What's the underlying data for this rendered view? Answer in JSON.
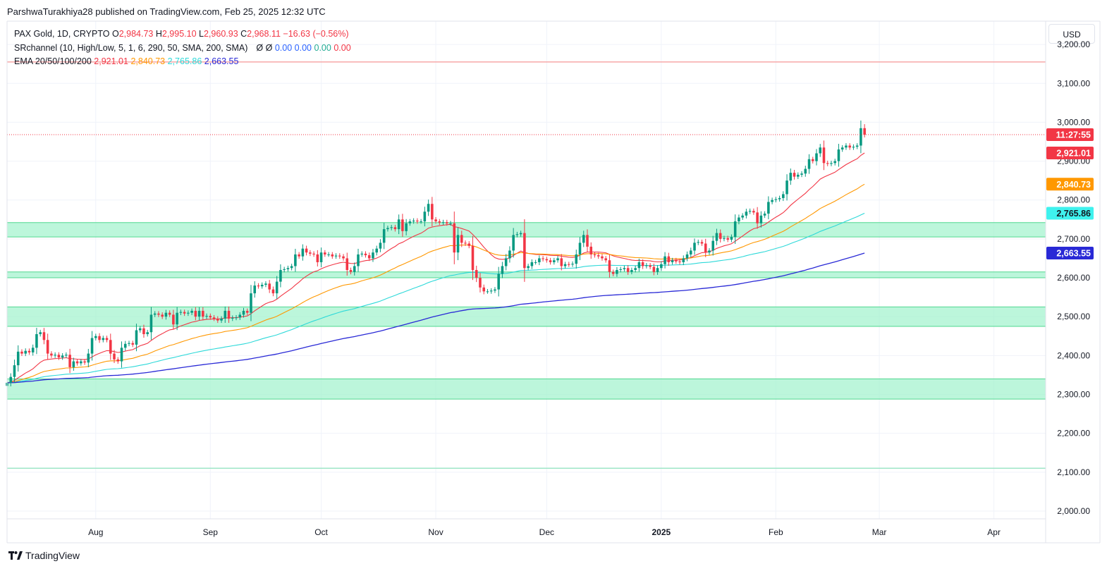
{
  "publisher": "ParshwaTurakhiya28 published on TradingView.com, Feb 25, 2025 12:32 UTC",
  "legend": {
    "symbol": "PAX Gold, 1D, CRYPTO",
    "ohlc": {
      "o_label": "O",
      "o": "2,984.73",
      "h_label": "H",
      "h": "2,995.10",
      "l_label": "L",
      "l": "2,960.93",
      "c_label": "C",
      "c": "2,968.11",
      "change": "−16.63 (−0.56%)"
    },
    "srchannel": {
      "label": "SRchannel (10, High/Low, 5, 1, 6, 290, 50, SMA, 200, SMA)",
      "v1": "Ø",
      "v2": "Ø",
      "v3": "0.00",
      "v4": "0.00",
      "v5": "0.00",
      "v6": "0.00"
    },
    "ema": {
      "label": "EMA 20/50/100/200",
      "v20": "2,921.01",
      "v50": "2,840.73",
      "v100": "2,765.86",
      "v200": "2,663.55"
    }
  },
  "currency_button": "USD",
  "price_tags": {
    "countdown": "11:27:55",
    "ema20": "2,921.01",
    "ema50": "2,840.73",
    "ema100": "2,765.86",
    "ema200": "2,663.55"
  },
  "footer_logo_text": "TradingView",
  "colors": {
    "up": "#089981",
    "down": "#f23645",
    "ema20": "#f23645",
    "ema50": "#ff9800",
    "ema100": "#2dd9d9",
    "ema200": "#2929d6",
    "zone": "#9ff2cc",
    "zone_edge": "#50d890",
    "resistance": "#f7a8a8",
    "support": "#9ee6c7",
    "grid": "#f0f3fa",
    "axis_text": "#131722"
  },
  "chart_data": {
    "type": "candlestick",
    "ylim": [
      1980,
      3260
    ],
    "xlim": [
      "2024-07-08",
      "2025-04-15"
    ],
    "y_ticks": [
      "3,200.00",
      "3,100.00",
      "3,000.00",
      "2,900.00",
      "2,800.00",
      "2,700.00",
      "2,600.00",
      "2,500.00",
      "2,400.00",
      "2,300.00",
      "2,200.00",
      "2,100.00",
      "2,000.00"
    ],
    "y_tick_values": [
      3200,
      3100,
      3000,
      2900,
      2800,
      2700,
      2600,
      2500,
      2400,
      2300,
      2200,
      2100,
      2000
    ],
    "x_ticks": [
      "Aug",
      "Sep",
      "Oct",
      "Nov",
      "Dec",
      "2025",
      "Feb",
      "Mar",
      "Apr"
    ],
    "x_tick_dates": [
      "2024-08-01",
      "2024-09-01",
      "2024-10-01",
      "2024-11-01",
      "2024-12-01",
      "2025-01-01",
      "2025-02-01",
      "2025-03-01",
      "2025-04-01"
    ],
    "last_close": 2968.11,
    "resistance_line": 3155,
    "support_line": 2110,
    "sr_zones": [
      [
        2705,
        2742
      ],
      [
        2600,
        2615
      ],
      [
        2475,
        2525
      ],
      [
        2288,
        2340
      ]
    ],
    "closes": [
      [
        "2024-07-08",
        2330
      ],
      [
        "2024-07-09",
        2345
      ],
      [
        "2024-07-10",
        2375
      ],
      [
        "2024-07-11",
        2410
      ],
      [
        "2024-07-12",
        2405
      ],
      [
        "2024-07-13",
        2412
      ],
      [
        "2024-07-14",
        2408
      ],
      [
        "2024-07-15",
        2420
      ],
      [
        "2024-07-16",
        2455
      ],
      [
        "2024-07-17",
        2460
      ],
      [
        "2024-07-18",
        2440
      ],
      [
        "2024-07-19",
        2405
      ],
      [
        "2024-07-20",
        2400
      ],
      [
        "2024-07-21",
        2402
      ],
      [
        "2024-07-22",
        2395
      ],
      [
        "2024-07-23",
        2400
      ],
      [
        "2024-07-24",
        2402
      ],
      [
        "2024-07-25",
        2370
      ],
      [
        "2024-07-26",
        2385
      ],
      [
        "2024-07-27",
        2380
      ],
      [
        "2024-07-28",
        2385
      ],
      [
        "2024-07-29",
        2382
      ],
      [
        "2024-07-30",
        2405
      ],
      [
        "2024-07-31",
        2445
      ],
      [
        "2024-08-01",
        2450
      ],
      [
        "2024-08-02",
        2440
      ],
      [
        "2024-08-03",
        2445
      ],
      [
        "2024-08-04",
        2440
      ],
      [
        "2024-08-05",
        2405
      ],
      [
        "2024-08-06",
        2390
      ],
      [
        "2024-08-07",
        2385
      ],
      [
        "2024-08-08",
        2420
      ],
      [
        "2024-08-09",
        2430
      ],
      [
        "2024-08-10",
        2432
      ],
      [
        "2024-08-11",
        2428
      ],
      [
        "2024-08-12",
        2465
      ],
      [
        "2024-08-13",
        2470
      ],
      [
        "2024-08-14",
        2455
      ],
      [
        "2024-08-15",
        2460
      ],
      [
        "2024-08-16",
        2505
      ],
      [
        "2024-08-17",
        2508
      ],
      [
        "2024-08-18",
        2505
      ],
      [
        "2024-08-19",
        2500
      ],
      [
        "2024-08-20",
        2510
      ],
      [
        "2024-08-21",
        2505
      ],
      [
        "2024-08-22",
        2480
      ],
      [
        "2024-08-23",
        2510
      ],
      [
        "2024-08-24",
        2512
      ],
      [
        "2024-08-25",
        2508
      ],
      [
        "2024-08-26",
        2510
      ],
      [
        "2024-08-27",
        2515
      ],
      [
        "2024-08-28",
        2500
      ],
      [
        "2024-08-29",
        2515
      ],
      [
        "2024-08-30",
        2500
      ],
      [
        "2024-08-31",
        2502
      ],
      [
        "2024-09-01",
        2498
      ],
      [
        "2024-09-02",
        2495
      ],
      [
        "2024-09-03",
        2490
      ],
      [
        "2024-09-04",
        2495
      ],
      [
        "2024-09-05",
        2515
      ],
      [
        "2024-09-06",
        2495
      ],
      [
        "2024-09-07",
        2497
      ],
      [
        "2024-09-08",
        2498
      ],
      [
        "2024-09-09",
        2505
      ],
      [
        "2024-09-10",
        2515
      ],
      [
        "2024-09-11",
        2510
      ],
      [
        "2024-09-12",
        2560
      ],
      [
        "2024-09-13",
        2580
      ],
      [
        "2024-09-14",
        2578
      ],
      [
        "2024-09-15",
        2582
      ],
      [
        "2024-09-16",
        2585
      ],
      [
        "2024-09-17",
        2570
      ],
      [
        "2024-09-18",
        2560
      ],
      [
        "2024-09-19",
        2590
      ],
      [
        "2024-09-20",
        2620
      ],
      [
        "2024-09-21",
        2622
      ],
      [
        "2024-09-22",
        2625
      ],
      [
        "2024-09-23",
        2630
      ],
      [
        "2024-09-24",
        2660
      ],
      [
        "2024-09-25",
        2655
      ],
      [
        "2024-09-26",
        2675
      ],
      [
        "2024-09-27",
        2665
      ],
      [
        "2024-09-28",
        2662
      ],
      [
        "2024-09-29",
        2660
      ],
      [
        "2024-09-30",
        2640
      ],
      [
        "2024-10-01",
        2665
      ],
      [
        "2024-10-02",
        2660
      ],
      [
        "2024-10-03",
        2660
      ],
      [
        "2024-10-04",
        2655
      ],
      [
        "2024-10-05",
        2657
      ],
      [
        "2024-10-06",
        2655
      ],
      [
        "2024-10-07",
        2650
      ],
      [
        "2024-10-08",
        2620
      ],
      [
        "2024-10-09",
        2615
      ],
      [
        "2024-10-10",
        2630
      ],
      [
        "2024-10-11",
        2660
      ],
      [
        "2024-10-12",
        2662
      ],
      [
        "2024-10-13",
        2658
      ],
      [
        "2024-10-14",
        2650
      ],
      [
        "2024-10-15",
        2665
      ],
      [
        "2024-10-16",
        2675
      ],
      [
        "2024-10-17",
        2690
      ],
      [
        "2024-10-18",
        2725
      ],
      [
        "2024-10-19",
        2728
      ],
      [
        "2024-10-20",
        2730
      ],
      [
        "2024-10-21",
        2725
      ],
      [
        "2024-10-22",
        2750
      ],
      [
        "2024-10-23",
        2720
      ],
      [
        "2024-10-24",
        2740
      ],
      [
        "2024-10-25",
        2745
      ],
      [
        "2024-10-26",
        2747
      ],
      [
        "2024-10-27",
        2745
      ],
      [
        "2024-10-28",
        2745
      ],
      [
        "2024-10-29",
        2770
      ],
      [
        "2024-10-30",
        2790
      ],
      [
        "2024-10-31",
        2750
      ],
      [
        "2024-11-01",
        2745
      ],
      [
        "2024-11-02",
        2742
      ],
      [
        "2024-11-03",
        2743
      ],
      [
        "2024-11-04",
        2740
      ],
      [
        "2024-11-05",
        2740
      ],
      [
        "2024-11-06",
        2665
      ],
      [
        "2024-11-07",
        2710
      ],
      [
        "2024-11-08",
        2690
      ],
      [
        "2024-11-09",
        2688
      ],
      [
        "2024-11-10",
        2682
      ],
      [
        "2024-11-11",
        2620
      ],
      [
        "2024-11-12",
        2600
      ],
      [
        "2024-11-13",
        2575
      ],
      [
        "2024-11-14",
        2565
      ],
      [
        "2024-11-15",
        2565
      ],
      [
        "2024-11-16",
        2567
      ],
      [
        "2024-11-17",
        2570
      ],
      [
        "2024-11-18",
        2610
      ],
      [
        "2024-11-19",
        2630
      ],
      [
        "2024-11-20",
        2650
      ],
      [
        "2024-11-21",
        2670
      ],
      [
        "2024-11-22",
        2710
      ],
      [
        "2024-11-23",
        2712
      ],
      [
        "2024-11-24",
        2715
      ],
      [
        "2024-11-25",
        2625
      ],
      [
        "2024-11-26",
        2630
      ],
      [
        "2024-11-27",
        2640
      ],
      [
        "2024-11-28",
        2640
      ],
      [
        "2024-11-29",
        2650
      ],
      [
        "2024-11-30",
        2648
      ],
      [
        "2024-12-01",
        2645
      ],
      [
        "2024-12-02",
        2640
      ],
      [
        "2024-12-03",
        2645
      ],
      [
        "2024-12-04",
        2650
      ],
      [
        "2024-12-05",
        2630
      ],
      [
        "2024-12-06",
        2635
      ],
      [
        "2024-12-07",
        2634
      ],
      [
        "2024-12-08",
        2636
      ],
      [
        "2024-12-09",
        2660
      ],
      [
        "2024-12-10",
        2690
      ],
      [
        "2024-12-11",
        2710
      ],
      [
        "2024-12-12",
        2680
      ],
      [
        "2024-12-13",
        2660
      ],
      [
        "2024-12-14",
        2658
      ],
      [
        "2024-12-15",
        2655
      ],
      [
        "2024-12-16",
        2650
      ],
      [
        "2024-12-17",
        2645
      ],
      [
        "2024-12-18",
        2615
      ],
      [
        "2024-12-19",
        2610
      ],
      [
        "2024-12-20",
        2620
      ],
      [
        "2024-12-21",
        2622
      ],
      [
        "2024-12-22",
        2625
      ],
      [
        "2024-12-23",
        2615
      ],
      [
        "2024-12-24",
        2620
      ],
      [
        "2024-12-25",
        2625
      ],
      [
        "2024-12-26",
        2640
      ],
      [
        "2024-12-27",
        2630
      ],
      [
        "2024-12-28",
        2632
      ],
      [
        "2024-12-29",
        2628
      ],
      [
        "2024-12-30",
        2615
      ],
      [
        "2024-12-31",
        2625
      ],
      [
        "2025-01-01",
        2635
      ],
      [
        "2025-01-02",
        2655
      ],
      [
        "2025-01-03",
        2640
      ],
      [
        "2025-01-04",
        2645
      ],
      [
        "2025-01-05",
        2642
      ],
      [
        "2025-01-06",
        2640
      ],
      [
        "2025-01-07",
        2650
      ],
      [
        "2025-01-08",
        2660
      ],
      [
        "2025-01-09",
        2670
      ],
      [
        "2025-01-10",
        2690
      ],
      [
        "2025-01-11",
        2692
      ],
      [
        "2025-01-12",
        2688
      ],
      [
        "2025-01-13",
        2665
      ],
      [
        "2025-01-14",
        2670
      ],
      [
        "2025-01-15",
        2695
      ],
      [
        "2025-01-16",
        2715
      ],
      [
        "2025-01-17",
        2700
      ],
      [
        "2025-01-18",
        2702
      ],
      [
        "2025-01-19",
        2698
      ],
      [
        "2025-01-20",
        2705
      ],
      [
        "2025-01-21",
        2745
      ],
      [
        "2025-01-22",
        2755
      ],
      [
        "2025-01-23",
        2760
      ],
      [
        "2025-01-24",
        2770
      ],
      [
        "2025-01-25",
        2772
      ],
      [
        "2025-01-26",
        2768
      ],
      [
        "2025-01-27",
        2740
      ],
      [
        "2025-01-28",
        2760
      ],
      [
        "2025-01-29",
        2765
      ],
      [
        "2025-01-30",
        2795
      ],
      [
        "2025-01-31",
        2800
      ],
      [
        "2025-02-01",
        2802
      ],
      [
        "2025-02-02",
        2805
      ],
      [
        "2025-02-03",
        2815
      ],
      [
        "2025-02-04",
        2850
      ],
      [
        "2025-02-05",
        2870
      ],
      [
        "2025-02-06",
        2860
      ],
      [
        "2025-02-07",
        2865
      ],
      [
        "2025-02-08",
        2868
      ],
      [
        "2025-02-09",
        2880
      ],
      [
        "2025-02-10",
        2905
      ],
      [
        "2025-02-11",
        2900
      ],
      [
        "2025-02-12",
        2920
      ],
      [
        "2025-02-13",
        2935
      ],
      [
        "2025-02-14",
        2895
      ],
      [
        "2025-02-15",
        2893
      ],
      [
        "2025-02-16",
        2895
      ],
      [
        "2025-02-17",
        2900
      ],
      [
        "2025-02-18",
        2930
      ],
      [
        "2025-02-19",
        2935
      ],
      [
        "2025-02-20",
        2940
      ],
      [
        "2025-02-21",
        2935
      ],
      [
        "2025-02-22",
        2937
      ],
      [
        "2025-02-23",
        2940
      ],
      [
        "2025-02-24",
        2984.73
      ],
      [
        "2025-02-25",
        2968.11
      ]
    ],
    "ema_series": [
      {
        "name": "EMA 20",
        "period": 20,
        "last": 2921.01
      },
      {
        "name": "EMA 50",
        "period": 50,
        "last": 2840.73
      },
      {
        "name": "EMA 100",
        "period": 100,
        "last": 2765.86
      },
      {
        "name": "EMA 200",
        "period": 200,
        "last": 2663.55
      }
    ]
  }
}
